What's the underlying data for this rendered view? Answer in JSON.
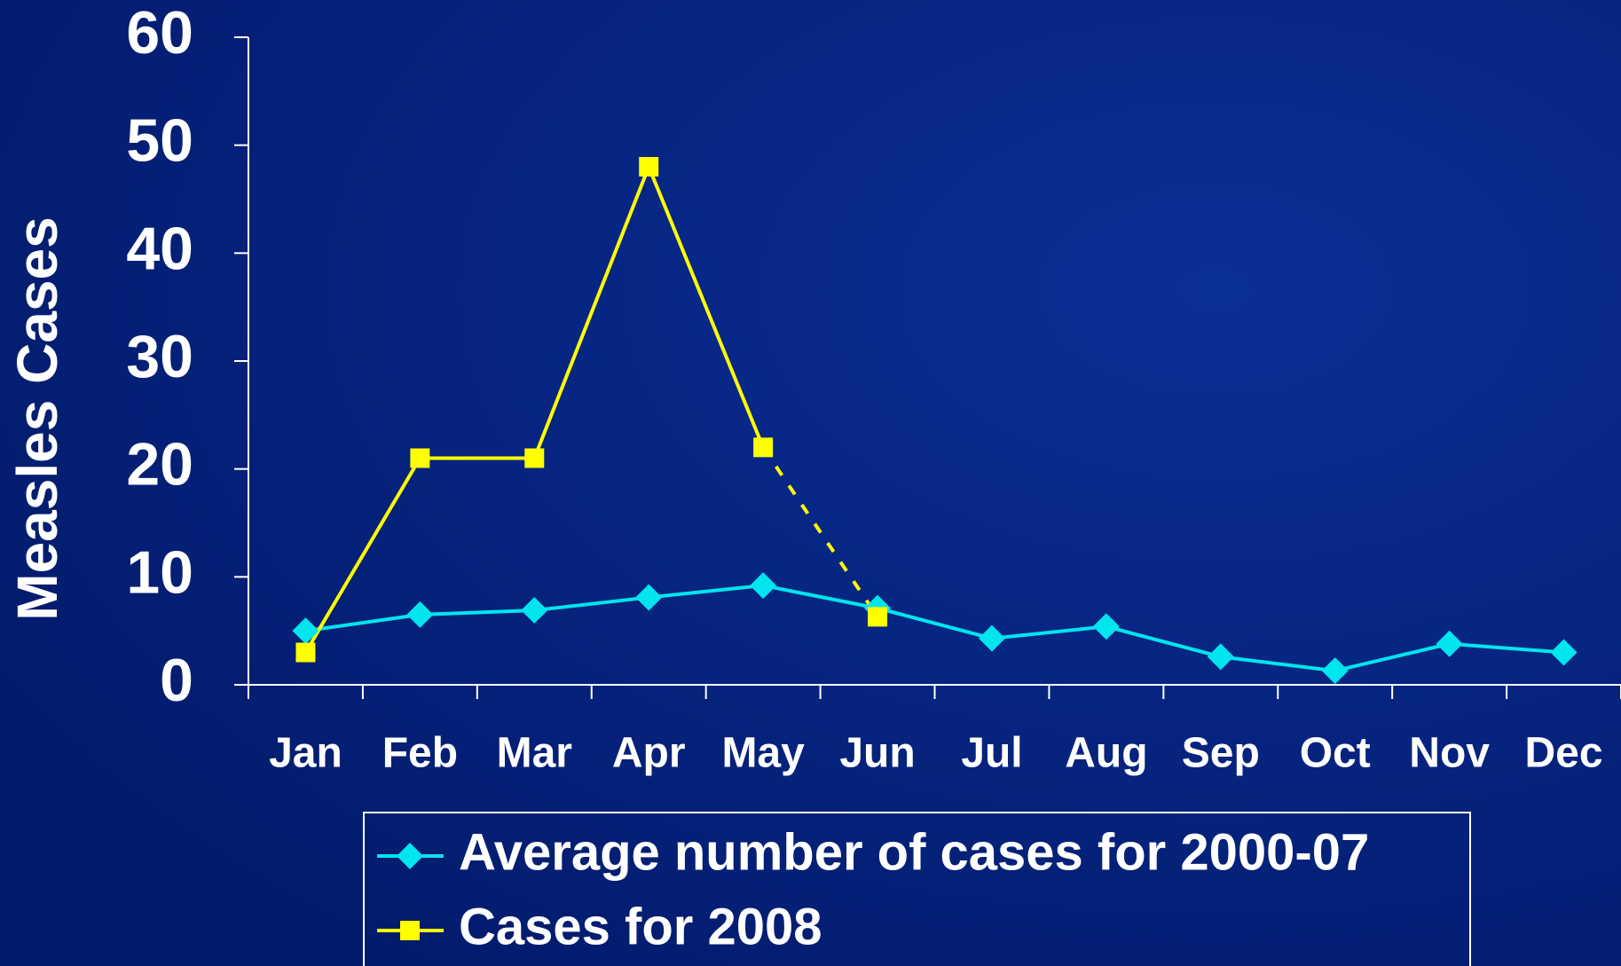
{
  "chart_data": {
    "type": "line",
    "y_label": "Measles Cases",
    "categories": [
      "Jan",
      "Feb",
      "Mar",
      "Apr",
      "May",
      "Jun",
      "Jul",
      "Aug",
      "Sep",
      "Oct",
      "Nov",
      "Dec"
    ],
    "series": [
      {
        "name": "Average number of cases for 2000-07",
        "color": "#00e5ee",
        "marker": "diamond",
        "values": [
          5,
          6.5,
          6.9,
          8.1,
          9.2,
          7.1,
          4.3,
          5.4,
          2.6,
          1.3,
          3.8,
          3.0
        ]
      },
      {
        "name": "Cases for 2008",
        "color": "#ffff00",
        "marker": "square",
        "dash_from_index": 4,
        "values": [
          3,
          21,
          21,
          48,
          22,
          6.3,
          null,
          null,
          null,
          null,
          null,
          null
        ]
      }
    ],
    "ylim": [
      0,
      60
    ],
    "yticks": [
      0,
      10,
      20,
      30,
      40,
      50,
      60
    ],
    "grid": false,
    "legend": "bottom"
  }
}
